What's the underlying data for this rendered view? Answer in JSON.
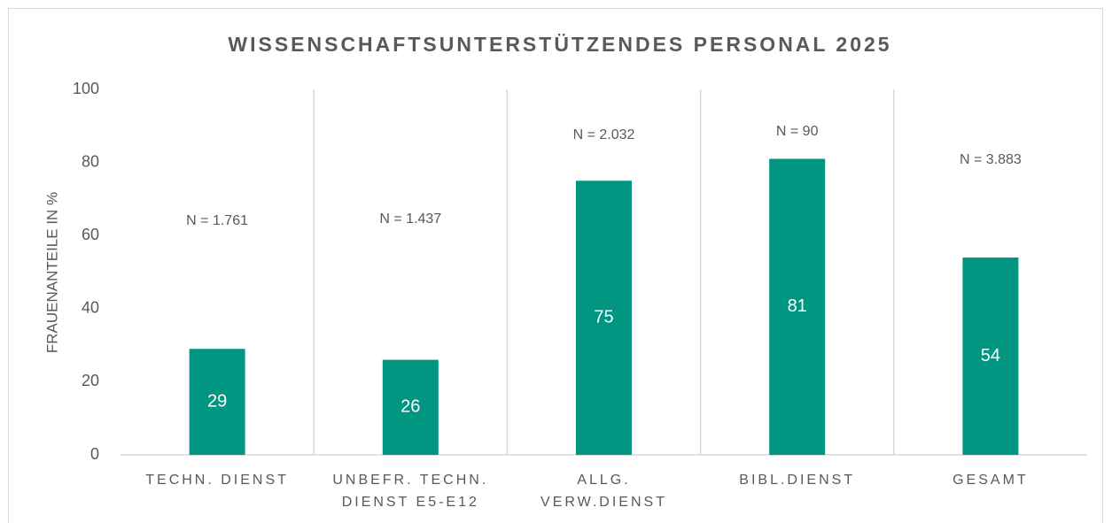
{
  "chart_data": {
    "type": "bar",
    "title": "WISSENSCHAFTSUNTERSTÜTZENDES PERSONAL 2025",
    "y_label": "FRAUENANTEILE IN %",
    "categories": [
      "TECHN. DIENST",
      "UNBEFR. TECHN. DIENST E5-E12",
      "ALLG. VERW.DIENST",
      "BIBL.DIENST",
      "GESAMT"
    ],
    "values": [
      29,
      26,
      75,
      81,
      54
    ],
    "annotations": [
      "N = 1.761",
      "N = 1.437",
      "N = 2.032",
      "N = 90",
      "N = 3.883"
    ],
    "color": "#009682",
    "ylim": [
      0,
      100
    ],
    "yticks": [
      0,
      20,
      40,
      60,
      80,
      100
    ]
  }
}
